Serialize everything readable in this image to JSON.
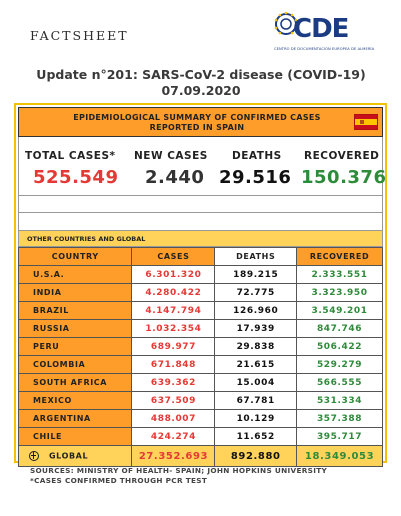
{
  "header": {
    "label": "FACTSHEET",
    "logo_text": "CDE",
    "logo_subtitle": "CENTRO DE DOCUMENTACIÓN EUROPEA DE ALMERÍA"
  },
  "title": "Update n°201: SARS-CoV-2 disease (COVID-19) 07.09.2020",
  "spain": {
    "header": "EPIDEMIOLOGICAL SUMMARY OF CONFIRMED CASES REPORTED IN SPAIN",
    "flag": "spain-flag",
    "stats": {
      "total_cases_label": "TOTAL CASES*",
      "total_cases": "525.549",
      "new_cases_label": "NEW CASES",
      "new_cases": "2.440",
      "deaths_label": "DEATHS",
      "deaths": "29.516",
      "recovered_label": "RECOVERED",
      "recovered": "150.376"
    }
  },
  "other": {
    "header": "OTHER COUNTRIES AND GLOBAL",
    "columns": [
      "COUNTRY",
      "CASES",
      "DEATHS",
      "RECOVERED"
    ],
    "rows": [
      {
        "country": "U.S.A.",
        "cases": "6.301.320",
        "deaths": "189.215",
        "recovered": "2.333.551"
      },
      {
        "country": "INDIA",
        "cases": "4.280.422",
        "deaths": "72.775",
        "recovered": "3.323.950"
      },
      {
        "country": "BRAZIL",
        "cases": "4.147.794",
        "deaths": "126.960",
        "recovered": "3.549.201"
      },
      {
        "country": "RUSSIA",
        "cases": "1.032.354",
        "deaths": "17.939",
        "recovered": "847.746"
      },
      {
        "country": "PERU",
        "cases": "689.977",
        "deaths": "29.838",
        "recovered": "506.422"
      },
      {
        "country": "COLOMBIA",
        "cases": "671.848",
        "deaths": "21.615",
        "recovered": "529.279"
      },
      {
        "country": "SOUTH AFRICA",
        "cases": "639.362",
        "deaths": "15.004",
        "recovered": "566.555"
      },
      {
        "country": "MEXICO",
        "cases": "637.509",
        "deaths": "67.781",
        "recovered": "531.334"
      },
      {
        "country": "ARGENTINA",
        "cases": "488.007",
        "deaths": "10.129",
        "recovered": "357.388"
      },
      {
        "country": "CHILE",
        "cases": "424.274",
        "deaths": "11.652",
        "recovered": "395.717"
      }
    ],
    "global": {
      "country": "GLOBAL",
      "cases": "27.352.693",
      "deaths": "892.880",
      "recovered": "18.349.053"
    }
  },
  "footer": {
    "sources": "SOURCES: MINISTRY OF HEALTH- SPAIN; JOHN HOPKINS UNIVERSITY",
    "note": "*CASES CONFIRMED THROUGH PCR TEST"
  },
  "colors": {
    "orange": "#ff9d2a",
    "yellow": "#ffd35a",
    "border": "#f2c100",
    "red": "#e53935",
    "green": "#2e8b3a",
    "logo_blue": "#1b3b82"
  }
}
